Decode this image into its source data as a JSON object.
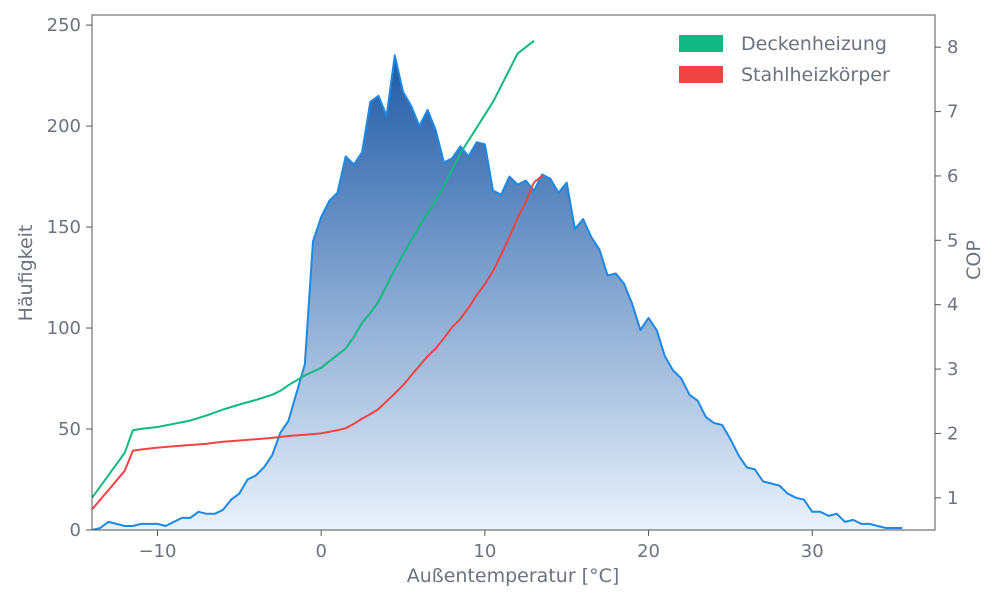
{
  "chart_data": {
    "type": "area",
    "xlabel": "Außentemperatur [°C]",
    "ylabel": "Häufigkeit",
    "y2label": "COP",
    "xlim": [
      -14,
      37.5
    ],
    "ylim": [
      0,
      255
    ],
    "y2lim": [
      0.5,
      8.5
    ],
    "x_ticks": [
      -10,
      0,
      10,
      20,
      30
    ],
    "x_tick_labels": [
      "−10",
      "0",
      "10",
      "20",
      "30"
    ],
    "y_ticks": [
      0,
      50,
      100,
      150,
      200,
      250
    ],
    "y_tick_labels": [
      "0",
      "50",
      "100",
      "150",
      "200",
      "250"
    ],
    "y2_ticks": [
      1,
      2,
      3,
      4,
      5,
      6,
      7,
      8
    ],
    "y2_tick_labels": [
      "1",
      "2",
      "3",
      "4",
      "5",
      "6",
      "7",
      "8"
    ],
    "legend_position": "top-right",
    "legend": [
      {
        "label": "Deckenheizung",
        "color": "#10b981"
      },
      {
        "label": "Stahlheizkörper",
        "color": "#ef4444"
      }
    ],
    "frequency": {
      "color": "#1e88e5",
      "fill_top": "#1f5aa6",
      "fill_bottom": "#eaf2fb",
      "points": [
        [
          -14,
          0
        ],
        [
          -13.5,
          1
        ],
        [
          -13,
          4
        ],
        [
          -12.5,
          3
        ],
        [
          -12,
          2
        ],
        [
          -11.5,
          2
        ],
        [
          -11,
          3
        ],
        [
          -10.5,
          3
        ],
        [
          -10,
          3
        ],
        [
          -9.5,
          2
        ],
        [
          -9,
          4
        ],
        [
          -8.5,
          6
        ],
        [
          -8,
          6
        ],
        [
          -7.5,
          9
        ],
        [
          -7,
          8
        ],
        [
          -6.5,
          8
        ],
        [
          -6,
          10
        ],
        [
          -5.5,
          15
        ],
        [
          -5,
          18
        ],
        [
          -4.5,
          25
        ],
        [
          -4,
          27
        ],
        [
          -3.5,
          31
        ],
        [
          -3,
          37
        ],
        [
          -2.5,
          48
        ],
        [
          -2,
          54
        ],
        [
          -1.5,
          68
        ],
        [
          -1,
          82
        ],
        [
          -0.5,
          143
        ],
        [
          0,
          155
        ],
        [
          0.5,
          163
        ],
        [
          1,
          167
        ],
        [
          1.5,
          185
        ],
        [
          2,
          181
        ],
        [
          2.5,
          187
        ],
        [
          3,
          212
        ],
        [
          3.5,
          215
        ],
        [
          4,
          205
        ],
        [
          4.5,
          235
        ],
        [
          5,
          217
        ],
        [
          5.5,
          210
        ],
        [
          6,
          200
        ],
        [
          6.5,
          208
        ],
        [
          7,
          198
        ],
        [
          7.5,
          182
        ],
        [
          8,
          184
        ],
        [
          8.5,
          190
        ],
        [
          9,
          185
        ],
        [
          9.5,
          192
        ],
        [
          10,
          191
        ],
        [
          10.5,
          168
        ],
        [
          11,
          166
        ],
        [
          11.5,
          175
        ],
        [
          12,
          171
        ],
        [
          12.5,
          173
        ],
        [
          13,
          168
        ],
        [
          13.5,
          176
        ],
        [
          14,
          174
        ],
        [
          14.5,
          167
        ],
        [
          15,
          172
        ],
        [
          15.5,
          149
        ],
        [
          16,
          154
        ],
        [
          16.5,
          145
        ],
        [
          17,
          139
        ],
        [
          17.5,
          126
        ],
        [
          18,
          127
        ],
        [
          18.5,
          122
        ],
        [
          19,
          112
        ],
        [
          19.5,
          99
        ],
        [
          20,
          105
        ],
        [
          20.5,
          99
        ],
        [
          21,
          86
        ],
        [
          21.5,
          79
        ],
        [
          22,
          75
        ],
        [
          22.5,
          67
        ],
        [
          23,
          64
        ],
        [
          23.5,
          56
        ],
        [
          24,
          53
        ],
        [
          24.5,
          52
        ],
        [
          25,
          45
        ],
        [
          25.5,
          37
        ],
        [
          26,
          31
        ],
        [
          26.5,
          30
        ],
        [
          27,
          24
        ],
        [
          27.5,
          23
        ],
        [
          28,
          22
        ],
        [
          28.5,
          18
        ],
        [
          29,
          16
        ],
        [
          29.5,
          15
        ],
        [
          30,
          9
        ],
        [
          30.5,
          9
        ],
        [
          31,
          7
        ],
        [
          31.5,
          8
        ],
        [
          32,
          4
        ],
        [
          32.5,
          5
        ],
        [
          33,
          3
        ],
        [
          33.5,
          3
        ],
        [
          34,
          2
        ],
        [
          34.5,
          1
        ],
        [
          35,
          1
        ],
        [
          35.5,
          1
        ]
      ]
    },
    "series": [
      {
        "name": "Deckenheizung",
        "color": "#10b981",
        "points": [
          [
            -14,
            1.0
          ],
          [
            -13,
            1.35
          ],
          [
            -12,
            1.7
          ],
          [
            -11.5,
            2.05
          ],
          [
            -11,
            2.07
          ],
          [
            -10,
            2.1
          ],
          [
            -9,
            2.15
          ],
          [
            -8,
            2.2
          ],
          [
            -7,
            2.28
          ],
          [
            -6,
            2.37
          ],
          [
            -5,
            2.45
          ],
          [
            -4,
            2.52
          ],
          [
            -3,
            2.6
          ],
          [
            -2.5,
            2.66
          ],
          [
            -2,
            2.75
          ],
          [
            -1,
            2.9
          ],
          [
            0,
            3.02
          ],
          [
            0.5,
            3.12
          ],
          [
            1,
            3.22
          ],
          [
            1.5,
            3.32
          ],
          [
            2,
            3.5
          ],
          [
            2.5,
            3.72
          ],
          [
            3,
            3.87
          ],
          [
            3.5,
            4.05
          ],
          [
            4,
            4.3
          ],
          [
            4.5,
            4.55
          ],
          [
            5,
            4.78
          ],
          [
            5.5,
            5.0
          ],
          [
            6,
            5.22
          ],
          [
            6.5,
            5.42
          ],
          [
            7,
            5.62
          ],
          [
            7.5,
            5.85
          ],
          [
            8,
            6.1
          ],
          [
            8.5,
            6.35
          ],
          [
            9,
            6.55
          ],
          [
            9.5,
            6.75
          ],
          [
            10,
            6.95
          ],
          [
            10.5,
            7.15
          ],
          [
            11,
            7.4
          ],
          [
            11.5,
            7.65
          ],
          [
            12,
            7.9
          ],
          [
            12.5,
            8.0
          ],
          [
            13,
            8.1
          ]
        ]
      },
      {
        "name": "Stahlheizkörper",
        "color": "#ef4444",
        "points": [
          [
            -14,
            0.82
          ],
          [
            -13,
            1.12
          ],
          [
            -12,
            1.42
          ],
          [
            -11.5,
            1.73
          ],
          [
            -11,
            1.75
          ],
          [
            -10,
            1.78
          ],
          [
            -9,
            1.8
          ],
          [
            -8,
            1.82
          ],
          [
            -7,
            1.84
          ],
          [
            -6,
            1.87
          ],
          [
            -5,
            1.89
          ],
          [
            -4,
            1.91
          ],
          [
            -3,
            1.93
          ],
          [
            -2,
            1.96
          ],
          [
            -1,
            1.98
          ],
          [
            0,
            2.0
          ],
          [
            1,
            2.05
          ],
          [
            1.5,
            2.08
          ],
          [
            2,
            2.15
          ],
          [
            2.5,
            2.23
          ],
          [
            3,
            2.3
          ],
          [
            3.5,
            2.38
          ],
          [
            4,
            2.5
          ],
          [
            4.5,
            2.62
          ],
          [
            5,
            2.75
          ],
          [
            5.5,
            2.9
          ],
          [
            6,
            3.05
          ],
          [
            6.5,
            3.2
          ],
          [
            7,
            3.32
          ],
          [
            7.5,
            3.48
          ],
          [
            8,
            3.65
          ],
          [
            8.5,
            3.78
          ],
          [
            9,
            3.95
          ],
          [
            9.5,
            4.15
          ],
          [
            10,
            4.32
          ],
          [
            10.5,
            4.52
          ],
          [
            11,
            4.78
          ],
          [
            11.5,
            5.05
          ],
          [
            12,
            5.35
          ],
          [
            12.5,
            5.6
          ],
          [
            13,
            5.9
          ],
          [
            13.5,
            6.0
          ]
        ]
      }
    ]
  }
}
